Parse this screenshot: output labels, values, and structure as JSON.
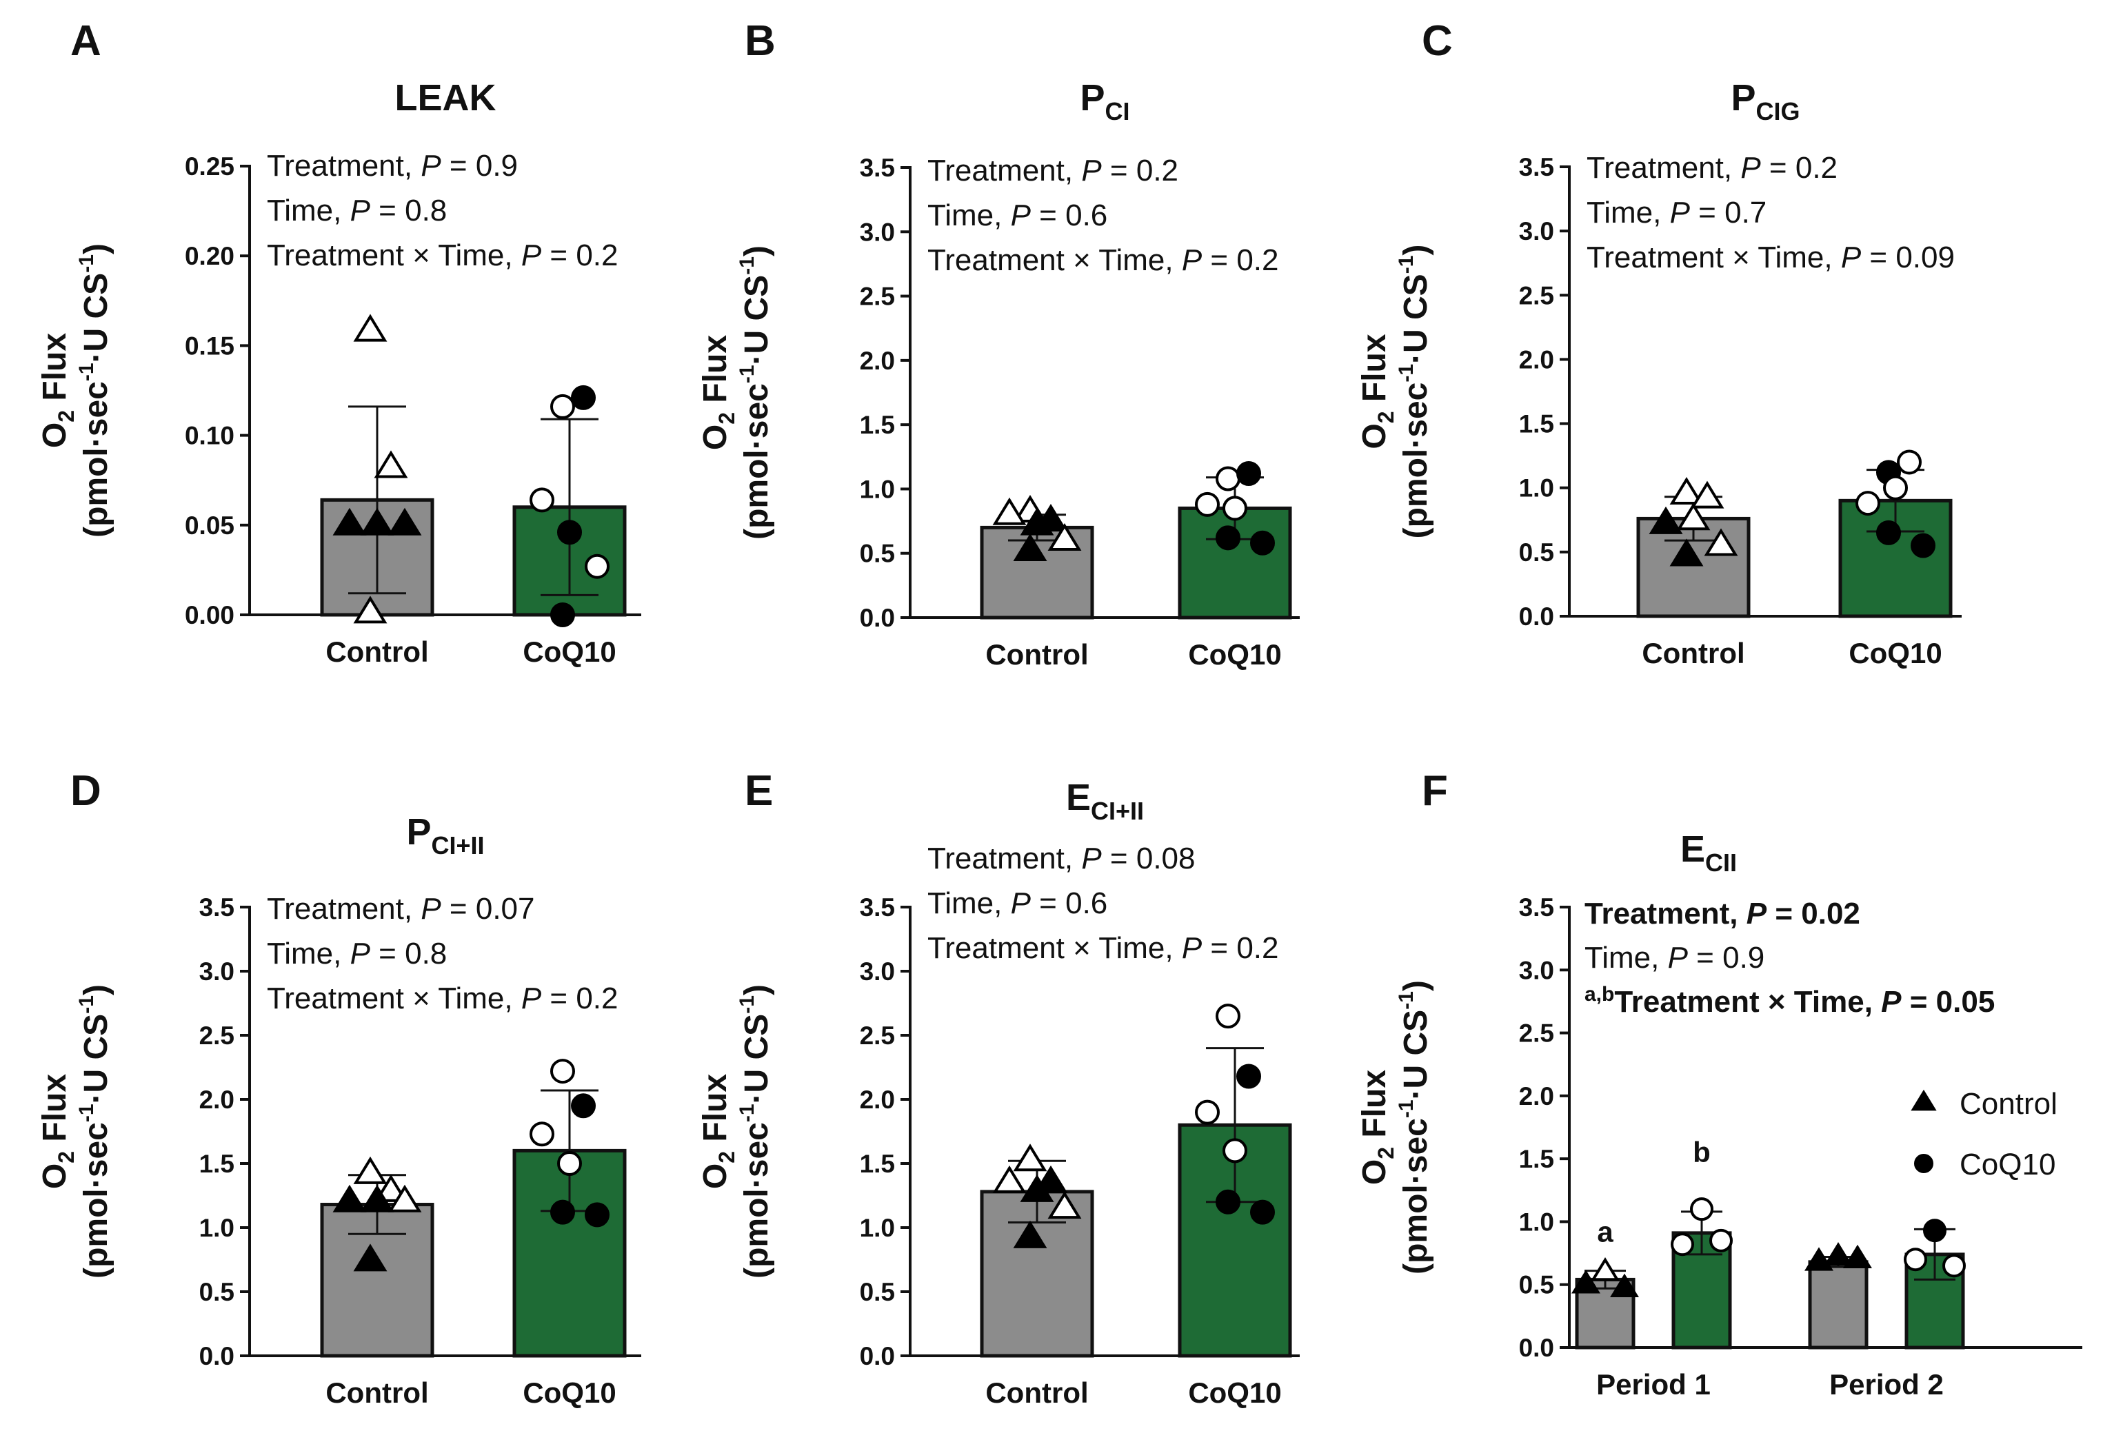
{
  "y_axis_label": {
    "line1": "O",
    "line1_sub": "2",
    "line1_rest": " Flux",
    "line2_a": "(pmol·sec",
    "line2_sup1": "-1",
    "line2_b": "·U CS",
    "line2_sup2": "-1",
    "line2_c": ")"
  },
  "colors": {
    "control_bar": "#8c8c8c",
    "coq10_bar": "#1e6b35",
    "axis": "#111111",
    "marker": "#000000"
  },
  "chart_data": [
    {
      "type": "bar",
      "panel": "A",
      "title_main": "LEAK",
      "title_sub": "",
      "categories": [
        "Control",
        "CoQ10"
      ],
      "values": [
        0.064,
        0.06
      ],
      "sd": [
        0.052,
        0.049
      ],
      "ylim": [
        0,
        0.25
      ],
      "yticks": [
        0.0,
        0.05,
        0.1,
        0.15,
        0.2,
        0.25
      ],
      "ytick_labels": [
        "0.00",
        "0.05",
        "0.10",
        "0.15",
        "0.20",
        "0.25"
      ],
      "points": [
        [
          {
            "y": 0.158,
            "filled": false
          },
          {
            "y": 0.082,
            "filled": false
          },
          {
            "y": 0.05,
            "filled": true
          },
          {
            "y": 0.05,
            "filled": true
          },
          {
            "y": 0.05,
            "filled": true
          },
          {
            "y": 0.001,
            "filled": false
          }
        ],
        [
          {
            "y": 0.116,
            "filled": false
          },
          {
            "y": 0.121,
            "filled": true
          },
          {
            "y": 0.064,
            "filled": false
          },
          {
            "y": 0.046,
            "filled": true
          },
          {
            "y": 0.027,
            "filled": false
          },
          {
            "y": 0.0,
            "filled": true
          }
        ]
      ],
      "stats": [
        {
          "label": "Treatment, ",
          "p": "P",
          "value": " = 0.9",
          "bold": false,
          "prefix": ""
        },
        {
          "label": "Time, ",
          "p": "P",
          "value": " = 0.8",
          "bold": false,
          "prefix": ""
        },
        {
          "label": "Treatment × Time, ",
          "p": "P",
          "value": " = 0.2",
          "bold": false,
          "prefix": ""
        }
      ]
    },
    {
      "type": "bar",
      "panel": "B",
      "title_main": "P",
      "title_sub": "CI",
      "categories": [
        "Control",
        "CoQ10"
      ],
      "values": [
        0.7,
        0.85
      ],
      "sd": [
        0.1,
        0.24
      ],
      "ylim": [
        0,
        3.5
      ],
      "yticks": [
        0,
        0.5,
        1.0,
        1.5,
        2.0,
        2.5,
        3.0,
        3.5
      ],
      "ytick_labels": [
        "0.0",
        "0.5",
        "1.0",
        "1.5",
        "2.0",
        "2.5",
        "3.0",
        "3.5"
      ],
      "points": [
        [
          {
            "y": 0.82,
            "filled": false
          },
          {
            "y": 0.75,
            "filled": true
          },
          {
            "y": 0.8,
            "filled": false
          },
          {
            "y": 0.72,
            "filled": true
          },
          {
            "y": 0.6,
            "filled": false
          },
          {
            "y": 0.52,
            "filled": true
          }
        ],
        [
          {
            "y": 1.08,
            "filled": false
          },
          {
            "y": 1.12,
            "filled": true
          },
          {
            "y": 0.88,
            "filled": false
          },
          {
            "y": 0.85,
            "filled": false
          },
          {
            "y": 0.58,
            "filled": true
          },
          {
            "y": 0.62,
            "filled": true
          }
        ]
      ],
      "stats": [
        {
          "label": "Treatment, ",
          "p": "P",
          "value": " = 0.2",
          "bold": false,
          "prefix": ""
        },
        {
          "label": "Time, ",
          "p": "P",
          "value": " = 0.6",
          "bold": false,
          "prefix": ""
        },
        {
          "label": "Treatment × Time, ",
          "p": "P",
          "value": " = 0.2",
          "bold": false,
          "prefix": ""
        }
      ]
    },
    {
      "type": "bar",
      "panel": "C",
      "title_main": "P",
      "title_sub": "CIG",
      "categories": [
        "Control",
        "CoQ10"
      ],
      "values": [
        0.76,
        0.9
      ],
      "sd": [
        0.17,
        0.24
      ],
      "ylim": [
        0,
        3.5
      ],
      "yticks": [
        0,
        0.5,
        1.0,
        1.5,
        2.0,
        2.5,
        3.0,
        3.5
      ],
      "ytick_labels": [
        "0.0",
        "0.5",
        "1.0",
        "1.5",
        "2.0",
        "2.5",
        "3.0",
        "3.5"
      ],
      "points": [
        [
          {
            "y": 0.95,
            "filled": false
          },
          {
            "y": 0.92,
            "filled": false
          },
          {
            "y": 0.72,
            "filled": true
          },
          {
            "y": 0.75,
            "filled": false
          },
          {
            "y": 0.55,
            "filled": false
          },
          {
            "y": 0.47,
            "filled": true
          }
        ],
        [
          {
            "y": 1.12,
            "filled": true
          },
          {
            "y": 1.2,
            "filled": false
          },
          {
            "y": 0.88,
            "filled": false
          },
          {
            "y": 1.0,
            "filled": false
          },
          {
            "y": 0.55,
            "filled": true
          },
          {
            "y": 0.65,
            "filled": true
          }
        ]
      ],
      "stats": [
        {
          "label": "Treatment, ",
          "p": "P",
          "value": " = 0.2",
          "bold": false,
          "prefix": ""
        },
        {
          "label": "Time, ",
          "p": "P",
          "value": " = 0.7",
          "bold": false,
          "prefix": ""
        },
        {
          "label": "Treatment × Time, ",
          "p": "P",
          "value": " = 0.09",
          "bold": false,
          "prefix": ""
        }
      ]
    },
    {
      "type": "bar",
      "panel": "D",
      "title_main": "P",
      "title_sub": "CI+II",
      "categories": [
        "Control",
        "CoQ10"
      ],
      "values": [
        1.18,
        1.6
      ],
      "sd": [
        0.23,
        0.47
      ],
      "ylim": [
        0,
        3.5
      ],
      "yticks": [
        0,
        0.5,
        1.0,
        1.5,
        2.0,
        2.5,
        3.0,
        3.5
      ],
      "ytick_labels": [
        "0.0",
        "0.5",
        "1.0",
        "1.5",
        "2.0",
        "2.5",
        "3.0",
        "3.5"
      ],
      "points": [
        [
          {
            "y": 1.42,
            "filled": false
          },
          {
            "y": 1.28,
            "filled": false
          },
          {
            "y": 1.2,
            "filled": true
          },
          {
            "y": 1.2,
            "filled": true
          },
          {
            "y": 1.2,
            "filled": false
          },
          {
            "y": 0.74,
            "filled": true
          }
        ],
        [
          {
            "y": 2.22,
            "filled": false
          },
          {
            "y": 1.95,
            "filled": true
          },
          {
            "y": 1.73,
            "filled": false
          },
          {
            "y": 1.5,
            "filled": false
          },
          {
            "y": 1.1,
            "filled": true
          },
          {
            "y": 1.12,
            "filled": true
          }
        ]
      ],
      "stats": [
        {
          "label": "Treatment, ",
          "p": "P",
          "value": " = 0.07",
          "bold": false,
          "prefix": ""
        },
        {
          "label": "Time, ",
          "p": "P",
          "value": " = 0.8",
          "bold": false,
          "prefix": ""
        },
        {
          "label": "Treatment × Time, ",
          "p": "P",
          "value": " = 0.2",
          "bold": false,
          "prefix": ""
        }
      ]
    },
    {
      "type": "bar",
      "panel": "E",
      "title_main": "E",
      "title_sub": "CI+II",
      "categories": [
        "Control",
        "CoQ10"
      ],
      "values": [
        1.28,
        1.8
      ],
      "sd": [
        0.24,
        0.6
      ],
      "ylim": [
        0,
        3.5
      ],
      "yticks": [
        0,
        0.5,
        1.0,
        1.5,
        2.0,
        2.5,
        3.0,
        3.5
      ],
      "ytick_labels": [
        "0.0",
        "0.5",
        "1.0",
        "1.5",
        "2.0",
        "2.5",
        "3.0",
        "3.5"
      ],
      "points": [
        [
          {
            "y": 1.52,
            "filled": false
          },
          {
            "y": 1.35,
            "filled": true
          },
          {
            "y": 1.35,
            "filled": false
          },
          {
            "y": 1.28,
            "filled": true
          },
          {
            "y": 1.15,
            "filled": false
          },
          {
            "y": 0.92,
            "filled": true
          }
        ],
        [
          {
            "y": 2.65,
            "filled": false
          },
          {
            "y": 2.18,
            "filled": true
          },
          {
            "y": 1.9,
            "filled": false
          },
          {
            "y": 1.6,
            "filled": false
          },
          {
            "y": 1.12,
            "filled": true
          },
          {
            "y": 1.2,
            "filled": true
          }
        ]
      ],
      "stats": [
        {
          "label": "Treatment, ",
          "p": "P",
          "value": " = 0.08",
          "bold": false,
          "prefix": ""
        },
        {
          "label": "Time, ",
          "p": "P",
          "value": " = 0.6",
          "bold": false,
          "prefix": ""
        },
        {
          "label": "Treatment × Time, ",
          "p": "P",
          "value": " = 0.2",
          "bold": false,
          "prefix": ""
        }
      ]
    },
    {
      "type": "grouped_bar",
      "panel": "F",
      "title_main": "E",
      "title_sub": "CII",
      "categories": [
        "Period 1",
        "Period 2"
      ],
      "series": [
        {
          "name": "Control",
          "values": [
            0.54,
            0.68
          ],
          "sd": [
            0.07,
            0.04
          ],
          "marker": "triangle",
          "points": [
            [
              0.6,
              0.5,
              0.47
            ],
            [
              0.72,
              0.68,
              0.7
            ]
          ]
        },
        {
          "name": "CoQ10",
          "values": [
            0.91,
            0.74
          ],
          "sd": [
            0.17,
            0.2
          ],
          "marker": "circle",
          "points": [
            [
              1.1,
              0.82,
              0.85
            ],
            [
              0.93,
              0.7,
              0.65
            ]
          ]
        }
      ],
      "significance_letters": [
        {
          "group": 0,
          "series": 0,
          "letter": "a"
        },
        {
          "group": 0,
          "series": 1,
          "letter": "b"
        }
      ],
      "legend": [
        "Control",
        "CoQ10"
      ],
      "ylim": [
        0,
        3.5
      ],
      "yticks": [
        0,
        0.5,
        1.0,
        1.5,
        2.0,
        2.5,
        3.0,
        3.5
      ],
      "ytick_labels": [
        "0.0",
        "0.5",
        "1.0",
        "1.5",
        "2.0",
        "2.5",
        "3.0",
        "3.5"
      ],
      "stats": [
        {
          "label": "Treatment, ",
          "p": "P",
          "value": " = 0.02",
          "bold": true,
          "prefix": ""
        },
        {
          "label": "Time, ",
          "p": "P",
          "value": " = 0.9",
          "bold": false,
          "prefix": ""
        },
        {
          "label": "Treatment × Time, ",
          "p": "P",
          "value": " = 0.05",
          "bold": true,
          "prefix": "a,b"
        }
      ]
    }
  ]
}
